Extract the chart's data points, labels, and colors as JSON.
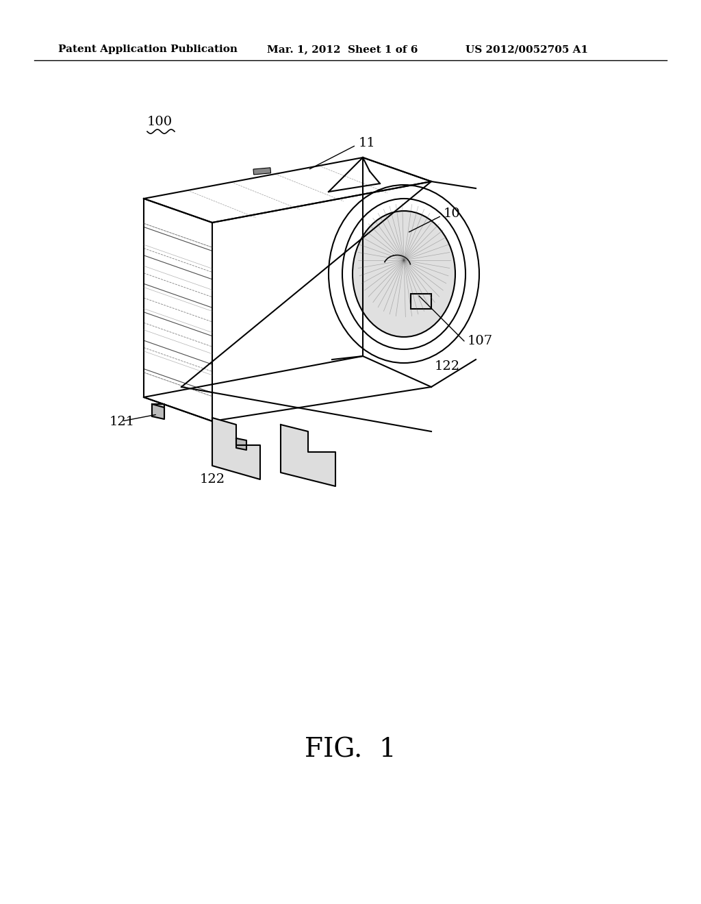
{
  "background_color": "#ffffff",
  "line_color": "#000000",
  "header_left": "Patent Application Publication",
  "header_mid": "Mar. 1, 2012  Sheet 1 of 6",
  "header_right": "US 2012/0052705 A1",
  "header_fontsize": 11,
  "figure_label": "FIG.  1",
  "figure_label_fontsize": 28,
  "ref_100": "100",
  "ref_10": "10",
  "ref_11": "11",
  "ref_107": "107",
  "ref_121": "121",
  "ref_122a": "122",
  "ref_122b": "122",
  "ref_fontsize": 14
}
